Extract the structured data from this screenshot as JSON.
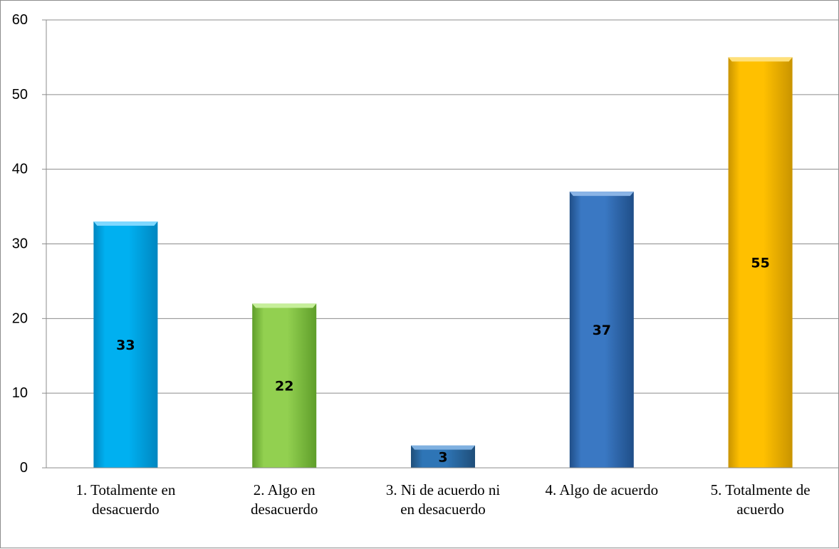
{
  "chart_data": {
    "type": "bar",
    "title": "",
    "xlabel": "",
    "ylabel": "",
    "categories": [
      [
        "1. Totalmente en",
        "desacuerdo"
      ],
      [
        "2. Algo en",
        "desacuerdo"
      ],
      [
        "3. Ni de acuerdo ni",
        "en desacuerdo"
      ],
      [
        "4. Algo de acuerdo"
      ],
      [
        "5. Totalmente de",
        "acuerdo"
      ]
    ],
    "values": [
      33,
      22,
      3,
      37,
      55
    ],
    "data_labels": [
      "33",
      "22",
      "3",
      "37",
      "55"
    ],
    "yticks": [
      "0",
      "10",
      "20",
      "30",
      "40",
      "50",
      "60"
    ],
    "ylim": [
      0,
      60
    ],
    "grid": true,
    "legend": "none",
    "colors": [
      "#00b0f0",
      "#92d050",
      "#2e75b6",
      "#3a78c3",
      "#ffc000"
    ],
    "colors_dark": [
      "#0086c0",
      "#5f9e2a",
      "#1f4e79",
      "#1f4e88",
      "#c99400"
    ],
    "colors_light": [
      "#7fd8ff",
      "#c6ef9a",
      "#7fb0e0",
      "#8ab4e6",
      "#ffe07a"
    ]
  }
}
